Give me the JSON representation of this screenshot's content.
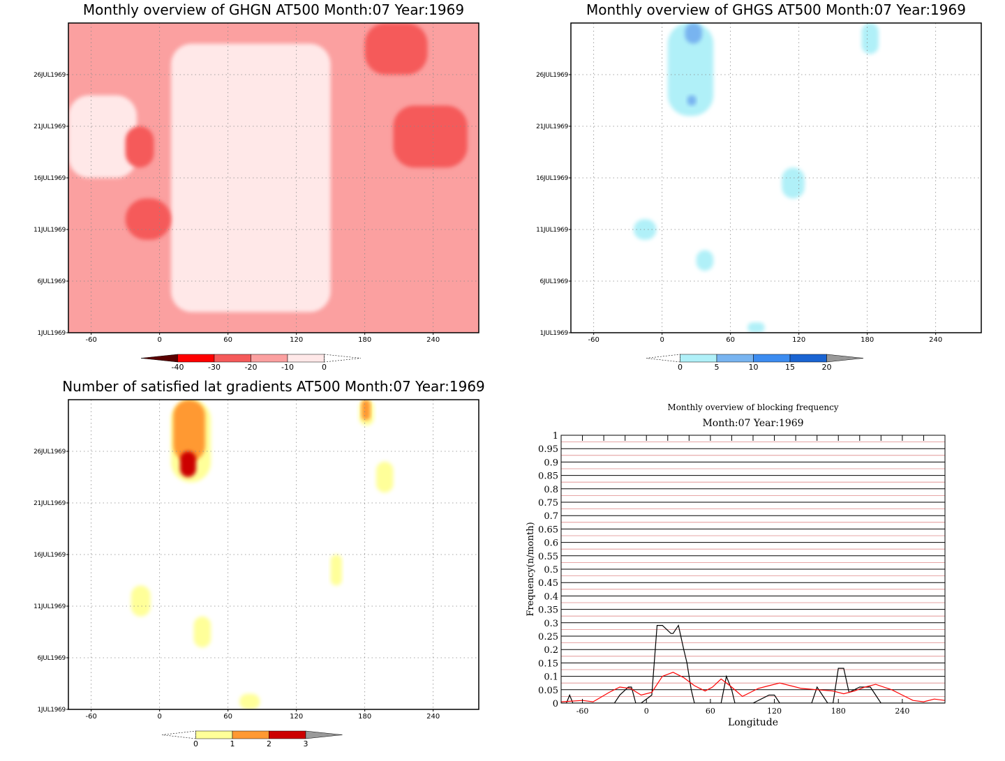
{
  "chart_data": [
    {
      "type": "heatmap",
      "title": "Monthly overview of GHGN AT500 Month:07 Year:1969",
      "x_ticks": [
        -60,
        0,
        60,
        120,
        180,
        240
      ],
      "y_ticks": [
        "1JUL1969",
        "6JUL1969",
        "11JUL1969",
        "16JUL1969",
        "21JUL1969",
        "26JUL1969"
      ],
      "xlim": [
        -80,
        280
      ],
      "ylim": [
        1,
        31
      ],
      "grid": true,
      "colorbar": {
        "labels": [
          "-40",
          "-30",
          "-20",
          "-10",
          "0"
        ],
        "colors": [
          "#5a0000",
          "#ff0000",
          "#f55a5a",
          "#fba0a0",
          "#ffe8e8"
        ]
      },
      "regions": [
        {
          "level": "-20",
          "color": "#fba0a0",
          "lon": [
            -80,
            280
          ],
          "day": [
            1,
            31
          ]
        },
        {
          "level": "-10",
          "color": "#ffe8e8",
          "lon": [
            10,
            150
          ],
          "day": [
            3,
            29
          ]
        },
        {
          "level": "-10",
          "color": "#ffe8e8",
          "lon": [
            -80,
            -20
          ],
          "day": [
            16,
            24
          ]
        },
        {
          "level": "-30",
          "color": "#f55a5a",
          "lon": [
            205,
            270
          ],
          "day": [
            17,
            23
          ]
        },
        {
          "level": "-30",
          "color": "#f55a5a",
          "lon": [
            -30,
            -5
          ],
          "day": [
            17,
            21
          ]
        },
        {
          "level": "-30",
          "color": "#f55a5a",
          "lon": [
            -30,
            10
          ],
          "day": [
            10,
            14
          ]
        },
        {
          "level": "-30",
          "color": "#f55a5a",
          "lon": [
            180,
            235
          ],
          "day": [
            26,
            31
          ]
        }
      ]
    },
    {
      "type": "heatmap",
      "title": "Monthly overview of GHGS AT500 Month:07 Year:1969",
      "x_ticks": [
        -60,
        0,
        60,
        120,
        180,
        240
      ],
      "y_ticks": [
        "1JUL1969",
        "6JUL1969",
        "11JUL1969",
        "16JUL1969",
        "21JUL1969",
        "26JUL1969"
      ],
      "xlim": [
        -80,
        280
      ],
      "ylim": [
        1,
        31
      ],
      "grid": true,
      "colorbar": {
        "labels": [
          "0",
          "5",
          "10",
          "15",
          "20"
        ],
        "colors": [
          "#b0f0f8",
          "#78b4f0",
          "#3c8cf0",
          "#1a64d2",
          "#999999"
        ]
      },
      "regions": [
        {
          "level": "0",
          "color": "#b0f0f8",
          "lon": [
            5,
            45
          ],
          "day": [
            22,
            31
          ]
        },
        {
          "level": "5",
          "color": "#78b4f0",
          "lon": [
            20,
            35
          ],
          "day": [
            29,
            31
          ]
        },
        {
          "level": "5",
          "color": "#78b4f0",
          "lon": [
            22,
            30
          ],
          "day": [
            23,
            24
          ]
        },
        {
          "level": "0",
          "color": "#b0f0f8",
          "lon": [
            105,
            125
          ],
          "day": [
            14,
            17
          ]
        },
        {
          "level": "0",
          "color": "#b0f0f8",
          "lon": [
            175,
            190
          ],
          "day": [
            28,
            31
          ]
        },
        {
          "level": "0",
          "color": "#b0f0f8",
          "lon": [
            -25,
            -5
          ],
          "day": [
            10,
            12
          ]
        },
        {
          "level": "0",
          "color": "#b0f0f8",
          "lon": [
            30,
            45
          ],
          "day": [
            7,
            9
          ]
        },
        {
          "level": "0",
          "color": "#b0f0f8",
          "lon": [
            75,
            90
          ],
          "day": [
            1,
            2
          ]
        }
      ]
    },
    {
      "type": "heatmap",
      "title": "Number of satisfied lat gradients AT500 Month:07 Year:1969",
      "x_ticks": [
        -60,
        0,
        60,
        120,
        180,
        240
      ],
      "y_ticks": [
        "1JUL1969",
        "6JUL1969",
        "11JUL1969",
        "16JUL1969",
        "21JUL1969",
        "26JUL1969"
      ],
      "xlim": [
        -80,
        280
      ],
      "ylim": [
        1,
        31
      ],
      "grid": true,
      "colorbar": {
        "labels": [
          "0",
          "1",
          "2",
          "3"
        ],
        "colors": [
          "#ffff99",
          "#ff9933",
          "#cc0000",
          "#999999"
        ]
      },
      "regions": [
        {
          "level": "1",
          "color": "#ffff99",
          "lon": [
            10,
            45
          ],
          "day": [
            23,
            31
          ]
        },
        {
          "level": "2",
          "color": "#ff9933",
          "lon": [
            12,
            40
          ],
          "day": [
            25,
            31
          ]
        },
        {
          "level": "3",
          "color": "#cc0000",
          "lon": [
            18,
            32
          ],
          "day": [
            23.5,
            26
          ]
        },
        {
          "level": "1",
          "color": "#ffff99",
          "lon": [
            175,
            188
          ],
          "day": [
            28.5,
            31
          ]
        },
        {
          "level": "2",
          "color": "#ff9933",
          "lon": [
            177,
            185
          ],
          "day": [
            29,
            31
          ]
        },
        {
          "level": "1",
          "color": "#ffff99",
          "lon": [
            -25,
            -8
          ],
          "day": [
            10,
            13
          ]
        },
        {
          "level": "1",
          "color": "#ffff99",
          "lon": [
            30,
            45
          ],
          "day": [
            7,
            10
          ]
        },
        {
          "level": "1",
          "color": "#ffff99",
          "lon": [
            150,
            160
          ],
          "day": [
            13,
            16
          ]
        },
        {
          "level": "1",
          "color": "#ffff99",
          "lon": [
            190,
            205
          ],
          "day": [
            22,
            25
          ]
        },
        {
          "level": "1",
          "color": "#ffff99",
          "lon": [
            70,
            88
          ],
          "day": [
            1,
            2.5
          ]
        }
      ]
    },
    {
      "type": "line",
      "title": "Monthly overview of blocking frequency",
      "subtitle": "Month:07 Year:1969",
      "xlabel": "Longitude",
      "ylabel": "Frequency(n/month)",
      "xlim": [
        -80,
        280
      ],
      "ylim": [
        0,
        1
      ],
      "x_ticks": [
        -60,
        0,
        60,
        120,
        180,
        240
      ],
      "y_ticks": [
        "0",
        "0.05",
        "0.1",
        "0.15",
        "0.2",
        "0.25",
        "0.3",
        "0.35",
        "0.4",
        "0.45",
        "0.5",
        "0.55",
        "0.6",
        "0.65",
        "0.7",
        "0.75",
        "0.8",
        "0.85",
        "0.9",
        "0.95",
        "1"
      ],
      "grid": true,
      "series": [
        {
          "color": "#000000",
          "x": [
            -80,
            -75,
            -72,
            -69,
            -55,
            -30,
            -25,
            -17,
            -14,
            -10,
            -5,
            5,
            10,
            15,
            23,
            25,
            30,
            35,
            38,
            42,
            45,
            70,
            75,
            80,
            83,
            100,
            115,
            120,
            125,
            140,
            155,
            160,
            170,
            175,
            180,
            185,
            190,
            200,
            210,
            215,
            220,
            245,
            280
          ],
          "y": [
            0,
            0,
            0.03,
            0,
            0,
            0,
            0.03,
            0.06,
            0.06,
            0,
            0,
            0.03,
            0.29,
            0.29,
            0.26,
            0.26,
            0.29,
            0.2,
            0.15,
            0.05,
            0,
            0,
            0.1,
            0.05,
            0,
            0,
            0.03,
            0.03,
            0,
            0,
            0,
            0.06,
            0,
            0,
            0.13,
            0.13,
            0.04,
            0.06,
            0.06,
            0.03,
            0,
            0,
            0
          ]
        },
        {
          "color": "#ff0000",
          "x": [
            -80,
            -60,
            -50,
            -35,
            -25,
            -15,
            -5,
            5,
            15,
            25,
            35,
            45,
            55,
            62,
            70,
            80,
            90,
            105,
            115,
            125,
            135,
            145,
            160,
            175,
            185,
            195,
            205,
            215,
            230,
            240,
            250,
            260,
            270,
            280
          ],
          "y": [
            0.005,
            0.01,
            0.005,
            0.04,
            0.06,
            0.055,
            0.03,
            0.04,
            0.1,
            0.115,
            0.095,
            0.065,
            0.045,
            0.06,
            0.09,
            0.06,
            0.025,
            0.055,
            0.065,
            0.075,
            0.065,
            0.055,
            0.05,
            0.045,
            0.035,
            0.045,
            0.06,
            0.07,
            0.05,
            0.03,
            0.01,
            0.005,
            0.015,
            0.01
          ]
        }
      ]
    }
  ]
}
